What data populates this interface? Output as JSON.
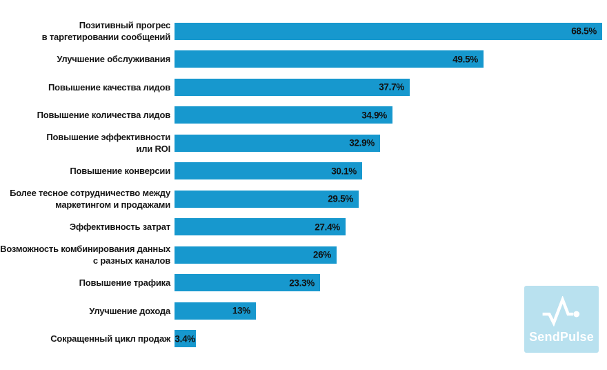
{
  "chart_data": {
    "type": "bar",
    "orientation": "horizontal",
    "title": "",
    "xlabel": "",
    "ylabel": "",
    "grid": false,
    "legend": false,
    "xlim": [
      0,
      68.5
    ],
    "bar_color": "#1798ce",
    "category_label_color": "#161616",
    "value_label_color": "#101010",
    "categories": [
      "Позитивный прогрес\nв таргетировании сообщений",
      "Улучшение обслуживания",
      "Повышение качества лидов",
      "Повышение количества лидов",
      "Повышение эффективности\nили ROI",
      "Повышение конверсии",
      "Более тесное сотрудничество между\nмаркетингом и продажами",
      "Эффективность затрат",
      "Возможность комбинирования данных\nс разных каналов",
      "Повышение трафика",
      "Улучшение дохода",
      "Сокращенный цикл продаж"
    ],
    "values": [
      68.5,
      49.5,
      37.7,
      34.9,
      32.9,
      30.1,
      29.5,
      27.4,
      26,
      23.3,
      13,
      3.4
    ],
    "value_labels": [
      "68.5%",
      "49.5%",
      "37.7%",
      "34.9%",
      "32.9%",
      "30.1%",
      "29.5%",
      "27.4%",
      "26%",
      "23.3%",
      "13%",
      "3.4%"
    ]
  },
  "watermark": {
    "text": "SendPulse",
    "bg_color": "#b9e1ef",
    "icon": "pulse-icon",
    "icon_color": "#ffffff",
    "text_color": "#ffffff"
  }
}
